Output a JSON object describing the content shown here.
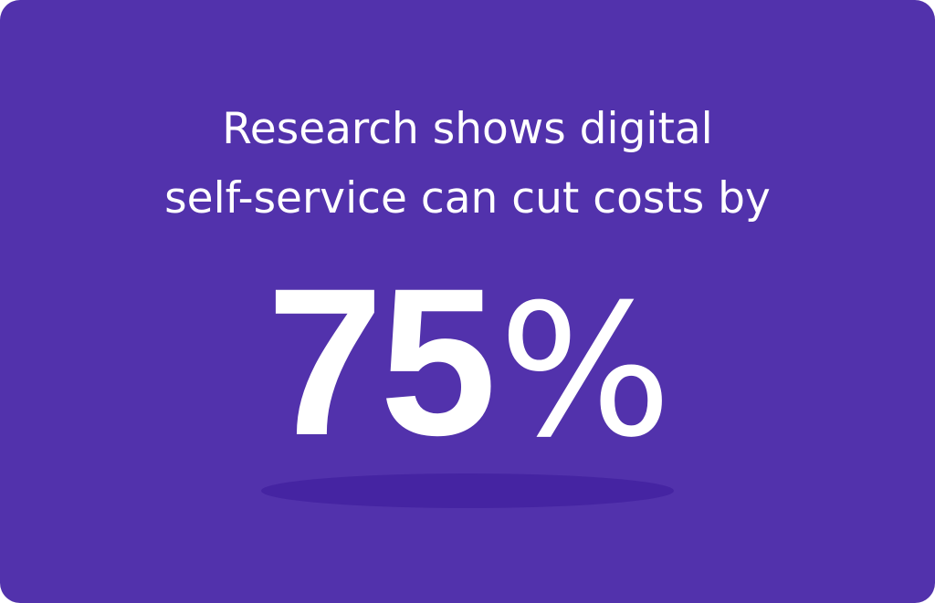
{
  "headline": {
    "line1": "Research shows digital",
    "line2": "self-service can cut costs by"
  },
  "stat": {
    "number": "75",
    "symbol": "%"
  },
  "colors": {
    "background": "#5232ac",
    "text": "#ffffff",
    "shadow": "#4322a0"
  }
}
